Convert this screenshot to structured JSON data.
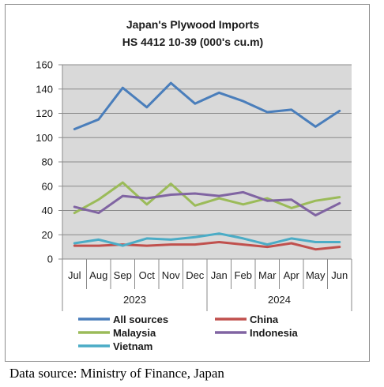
{
  "chart_data": {
    "type": "line",
    "title": [
      "Japan's Plywood Imports",
      "HS 4412 10-39  (000's cu.m)"
    ],
    "categories": [
      "Jul",
      "Aug",
      "Sep",
      "Oct",
      "Nov",
      "Dec",
      "Jan",
      "Feb",
      "Mar",
      "Apr",
      "May",
      "Jun"
    ],
    "year_groups": [
      {
        "label": "2023",
        "start": 0,
        "end": 5
      },
      {
        "label": "2024",
        "start": 6,
        "end": 11
      }
    ],
    "ylim": [
      0,
      160
    ],
    "yticks": [
      0,
      20,
      40,
      60,
      80,
      100,
      120,
      140,
      160
    ],
    "grid": true,
    "legend_placement": "bottom",
    "series": [
      {
        "name": "All sources",
        "color": "#4a7ebb",
        "values": [
          107,
          115,
          141,
          125,
          145,
          128,
          137,
          130,
          121,
          123,
          109,
          122
        ]
      },
      {
        "name": "China",
        "color": "#c0504d",
        "values": [
          11,
          11,
          12,
          11,
          12,
          12,
          14,
          12,
          10,
          13,
          8,
          10
        ]
      },
      {
        "name": "Malaysia",
        "color": "#9bbb59",
        "values": [
          38,
          49,
          63,
          45,
          62,
          44,
          50,
          45,
          50,
          42,
          48,
          51
        ]
      },
      {
        "name": "Indonesia",
        "color": "#8064a2",
        "values": [
          43,
          38,
          52,
          50,
          53,
          54,
          52,
          55,
          48,
          49,
          36,
          46
        ]
      },
      {
        "name": "Vietnam",
        "color": "#4bacc6",
        "values": [
          13,
          16,
          11,
          17,
          16,
          18,
          21,
          17,
          12,
          17,
          14,
          14
        ]
      }
    ]
  },
  "source_note": "Data source: Ministry of Finance, Japan"
}
